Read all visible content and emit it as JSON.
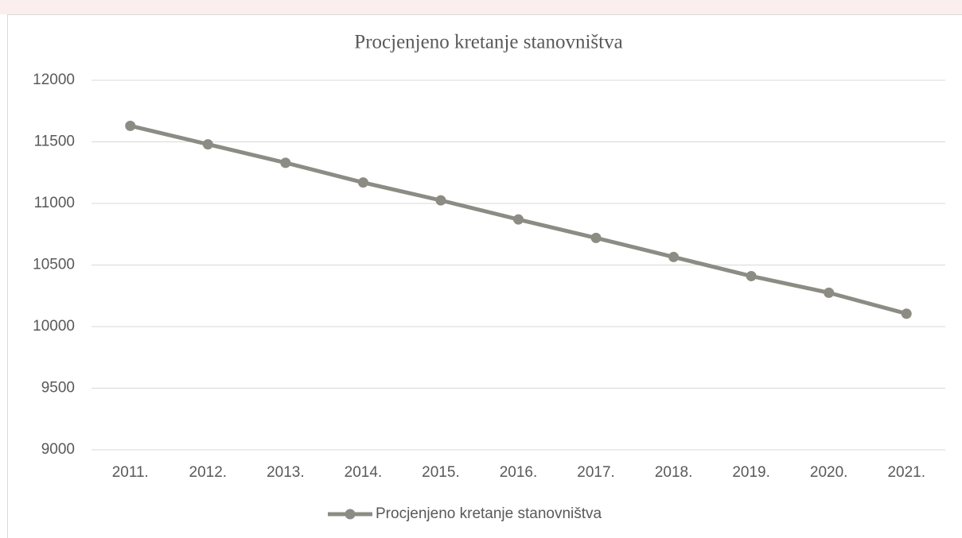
{
  "chart_data": {
    "type": "line",
    "title": "Procjenjeno kretanje stanovništva",
    "categories": [
      "2011.",
      "2012.",
      "2013.",
      "2014.",
      "2015.",
      "2016.",
      "2017.",
      "2018.",
      "2019.",
      "2020.",
      "2021."
    ],
    "series": [
      {
        "name": "Procjenjeno kretanje stanovništva",
        "color": "#8c8c85",
        "values": [
          11630,
          11480,
          11330,
          11170,
          11025,
          10870,
          10720,
          10565,
          10410,
          10275,
          10105
        ]
      }
    ],
    "ylim": [
      9000,
      12000
    ],
    "yticks": [
      9000,
      9500,
      10000,
      10500,
      11000,
      11500,
      12000
    ],
    "grid": true,
    "legend": "bottom"
  }
}
